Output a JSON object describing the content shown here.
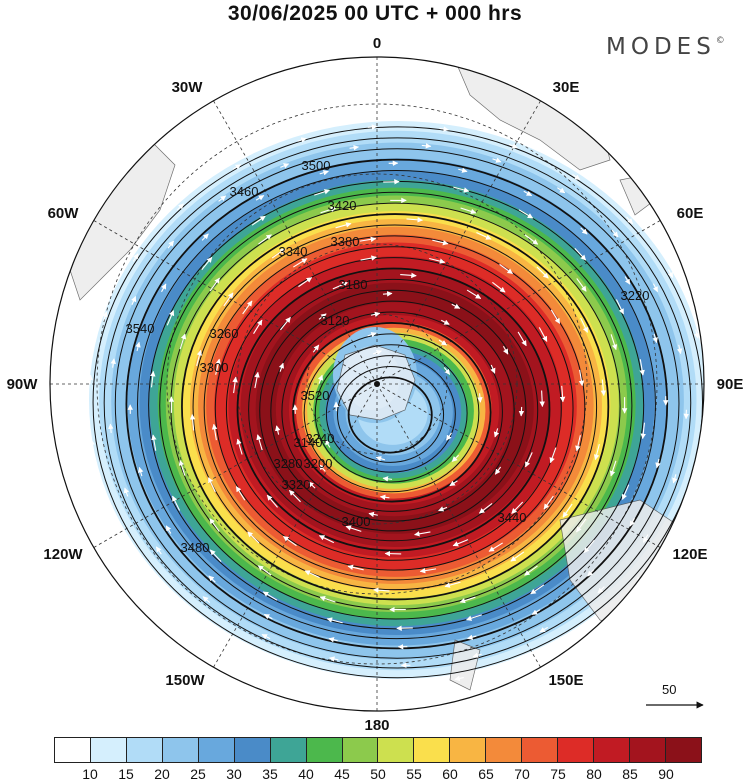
{
  "header": {
    "title": "30/06/2025  00 UTC  + 000 hrs",
    "brand": "MODES",
    "brand_mark": "©"
  },
  "map": {
    "projection": "south-polar-stereographic",
    "longitude_labels": [
      "0",
      "30E",
      "60E",
      "90E",
      "120E",
      "150E",
      "180",
      "150W",
      "120W",
      "90W",
      "60W",
      "30W"
    ],
    "contour_labels": [
      "3500",
      "3460",
      "3420",
      "3380",
      "3340",
      "3180",
      "3120",
      "3520",
      "3540",
      "3220",
      "3260",
      "3300",
      "3320",
      "3280",
      "3240",
      "3200",
      "3140",
      "3400",
      "3440",
      "3480"
    ],
    "land_color": "#eeeeee",
    "contour_color": "#111111",
    "vector_color": "#ffffff"
  },
  "reference_vector": {
    "label": "50"
  },
  "colorbar": {
    "colors": [
      "#ffffff",
      "#d5effd",
      "#b1dcf7",
      "#8ec5ec",
      "#68a8dd",
      "#4a8bc8",
      "#3ea596",
      "#4cb84c",
      "#8cca4c",
      "#cde04f",
      "#fadf4c",
      "#f8b543",
      "#f38a3a",
      "#ec5b33",
      "#dd2c27",
      "#c11b23",
      "#a3141e",
      "#8b1119"
    ],
    "labels": [
      "10",
      "15",
      "20",
      "25",
      "30",
      "35",
      "40",
      "45",
      "50",
      "55",
      "60",
      "65",
      "70",
      "75",
      "80",
      "85",
      "90"
    ]
  }
}
